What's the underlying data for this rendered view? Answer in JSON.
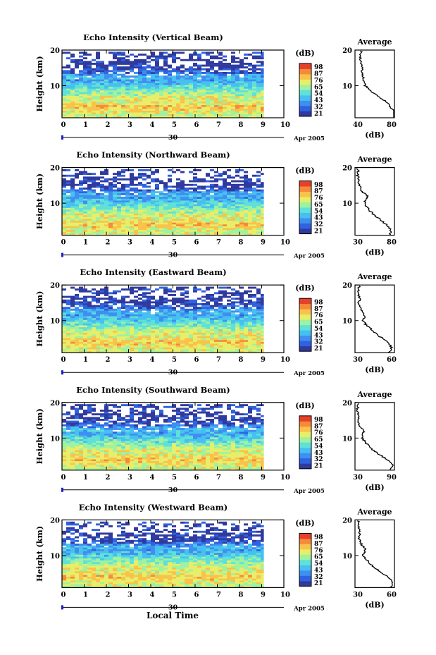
{
  "chart_data": {
    "type": "heatmap",
    "x_label": "Local Time",
    "y_label": "Height (km)",
    "colorbar_label": "(dB)",
    "colorbar_ticks": [
      "21",
      "32",
      "43",
      "54",
      "65",
      "76",
      "87",
      "98"
    ],
    "date_label": "30",
    "month_year": "Apr 2005",
    "xlim": [
      0,
      10
    ],
    "data_end_hour": 9.1,
    "ylim": [
      1,
      20
    ],
    "x_ticks": [
      "0",
      "1",
      "2",
      "3",
      "4",
      "5",
      "6",
      "7",
      "8",
      "9",
      "10"
    ],
    "y_ticks": [
      "10",
      "20"
    ],
    "avg_title": "Average",
    "avg_xlabel": "(dB)",
    "panels": [
      {
        "name": "vertical",
        "title": "Echo Intensity (Vertical Beam)",
        "avg_xlim": [
          40,
          80
        ],
        "avg_xticks": [
          "40",
          "80"
        ],
        "colorbar_ticks": [
          "21",
          "32",
          "43",
          "54",
          "65",
          "76",
          "87",
          "98"
        ],
        "profile": [
          [
            1,
            79
          ],
          [
            2,
            80
          ],
          [
            3,
            80
          ],
          [
            4,
            76
          ],
          [
            5,
            74
          ],
          [
            6,
            69
          ],
          [
            7,
            63
          ],
          [
            8,
            58
          ],
          [
            9,
            55
          ],
          [
            10,
            50
          ],
          [
            11,
            49
          ],
          [
            12,
            49
          ],
          [
            13,
            48
          ],
          [
            14,
            47
          ],
          [
            15,
            47
          ],
          [
            16,
            46
          ],
          [
            17,
            46
          ],
          [
            18,
            45
          ],
          [
            19,
            46
          ],
          [
            20,
            46
          ]
        ]
      },
      {
        "name": "northward",
        "title": "Echo Intensity (Northward Beam)",
        "avg_xlim": [
          30,
          80
        ],
        "avg_xticks": [
          "30",
          "80"
        ],
        "colorbar_ticks": [
          "21",
          "32",
          "43",
          "54",
          "65",
          "76",
          "87",
          "98"
        ],
        "profile": [
          [
            1,
            74
          ],
          [
            2,
            76
          ],
          [
            3,
            74
          ],
          [
            4,
            70
          ],
          [
            5,
            64
          ],
          [
            6,
            58
          ],
          [
            7,
            53
          ],
          [
            8,
            48
          ],
          [
            9,
            45
          ],
          [
            10,
            42
          ],
          [
            11,
            44
          ],
          [
            12,
            46
          ],
          [
            13,
            40
          ],
          [
            14,
            37
          ],
          [
            15,
            36
          ],
          [
            16,
            35
          ],
          [
            17,
            34
          ],
          [
            18,
            33
          ],
          [
            19,
            34
          ],
          [
            20,
            33
          ]
        ]
      },
      {
        "name": "eastward",
        "title": "Echo Intensity (Eastward Beam)",
        "avg_xlim": [
          30,
          60
        ],
        "avg_xticks": [
          "30",
          "60"
        ],
        "colorbar_ticks": [
          "21",
          "32",
          "43",
          "54",
          "65",
          "76",
          "87",
          "98"
        ],
        "profile": [
          [
            1,
            55
          ],
          [
            2,
            58
          ],
          [
            3,
            57
          ],
          [
            4,
            54
          ],
          [
            5,
            51
          ],
          [
            6,
            47
          ],
          [
            7,
            44
          ],
          [
            8,
            41
          ],
          [
            9,
            38
          ],
          [
            10,
            36
          ],
          [
            11,
            37
          ],
          [
            12,
            36
          ],
          [
            13,
            35
          ],
          [
            14,
            34
          ],
          [
            15,
            33
          ],
          [
            16,
            34
          ],
          [
            17,
            33
          ],
          [
            18,
            32
          ],
          [
            19,
            33
          ],
          [
            20,
            33
          ]
        ]
      },
      {
        "name": "southward",
        "title": "Echo Intensity (Southward Beam)",
        "avg_xlim": [
          30,
          90
        ],
        "avg_xticks": [
          "30",
          "90"
        ],
        "colorbar_ticks": [
          "21",
          "32",
          "43",
          "54",
          "65",
          "76",
          "87",
          "98"
        ],
        "profile": [
          [
            1,
            82
          ],
          [
            2,
            88
          ],
          [
            3,
            85
          ],
          [
            4,
            79
          ],
          [
            5,
            70
          ],
          [
            6,
            62
          ],
          [
            7,
            55
          ],
          [
            8,
            50
          ],
          [
            9,
            45
          ],
          [
            10,
            41
          ],
          [
            11,
            42
          ],
          [
            12,
            44
          ],
          [
            13,
            38
          ],
          [
            14,
            36
          ],
          [
            15,
            35
          ],
          [
            16,
            36
          ],
          [
            17,
            34
          ],
          [
            18,
            34
          ],
          [
            19,
            35
          ],
          [
            20,
            34
          ]
        ]
      },
      {
        "name": "westward",
        "title": "Echo Intensity (Westward Beam)",
        "avg_xlim": [
          30,
          60
        ],
        "avg_xticks": [
          "30",
          "60"
        ],
        "colorbar_ticks": [
          "21",
          "32",
          "43",
          "54",
          "65",
          "76",
          "87",
          "98"
        ],
        "profile": [
          [
            1,
            56
          ],
          [
            2,
            59
          ],
          [
            3,
            58
          ],
          [
            4,
            55
          ],
          [
            5,
            51
          ],
          [
            6,
            47
          ],
          [
            7,
            44
          ],
          [
            8,
            41
          ],
          [
            9,
            38
          ],
          [
            10,
            36
          ],
          [
            11,
            37
          ],
          [
            12,
            38
          ],
          [
            13,
            35
          ],
          [
            14,
            34
          ],
          [
            15,
            33
          ],
          [
            16,
            34
          ],
          [
            17,
            33
          ],
          [
            18,
            33
          ],
          [
            19,
            33
          ],
          [
            20,
            32
          ]
        ]
      }
    ]
  },
  "colors": {
    "ramp": [
      "#303a9e",
      "#2f62df",
      "#3f8ef0",
      "#46c0f0",
      "#5fe0d8",
      "#9ef2a0",
      "#e6ee6a",
      "#f9c24a",
      "#f58a3a",
      "#e6402a"
    ],
    "date_marker": "#2020c0"
  }
}
